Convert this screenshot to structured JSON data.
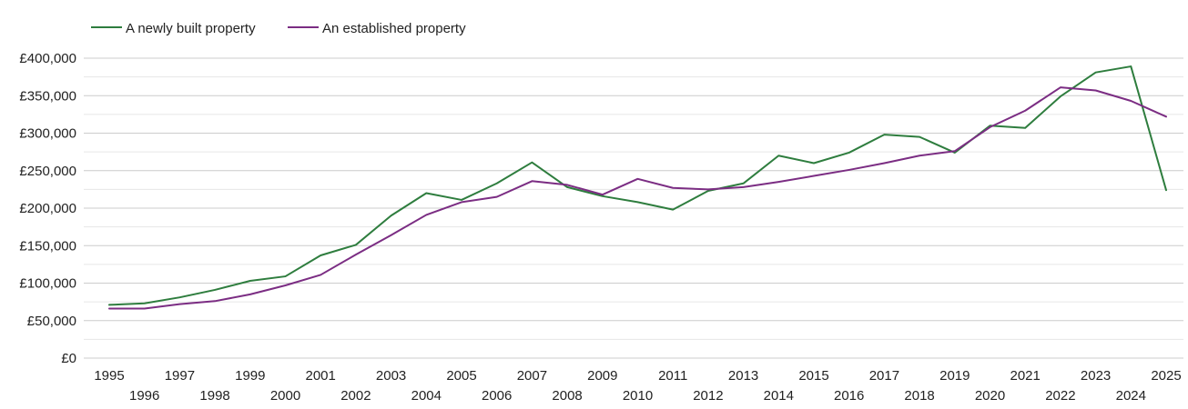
{
  "chart_data": {
    "type": "line",
    "title": "",
    "xlabel": "",
    "ylabel": "",
    "x": [
      "1995",
      "1996",
      "1997",
      "1998",
      "1999",
      "2000",
      "2001",
      "2002",
      "2003",
      "2004",
      "2005",
      "2006",
      "2007",
      "2008",
      "2009",
      "2010",
      "2011",
      "2012",
      "2013",
      "2014",
      "2015",
      "2016",
      "2017",
      "2018",
      "2019",
      "2020",
      "2021",
      "2022",
      "2023",
      "2024",
      "2025"
    ],
    "ylim": [
      0,
      400000
    ],
    "yticks": [
      0,
      50000,
      100000,
      150000,
      200000,
      250000,
      300000,
      350000,
      400000
    ],
    "ytick_labels": [
      "£0",
      "£50,000",
      "£100,000",
      "£150,000",
      "£200,000",
      "£250,000",
      "£300,000",
      "£350,000",
      "£400,000"
    ],
    "grid": true,
    "legend_position": "top-left",
    "series": [
      {
        "name": "A newly built property",
        "color": "#2e7d3e",
        "values": [
          71000,
          73000,
          81000,
          91000,
          103000,
          109000,
          137000,
          151000,
          190000,
          220000,
          211000,
          233000,
          261000,
          228000,
          216000,
          208000,
          198000,
          223000,
          233000,
          270000,
          260000,
          274000,
          298000,
          295000,
          274000,
          310000,
          307000,
          349000,
          381000,
          389000,
          224000
        ]
      },
      {
        "name": "An established property",
        "color": "#7b2d83",
        "values": [
          66000,
          66000,
          72000,
          76000,
          85000,
          97000,
          111000,
          138000,
          164000,
          191000,
          208000,
          215000,
          236000,
          231000,
          218000,
          239000,
          227000,
          225000,
          228000,
          235000,
          243000,
          251000,
          260000,
          270000,
          276000,
          308000,
          330000,
          361000,
          357000,
          343000,
          322000
        ]
      }
    ]
  }
}
